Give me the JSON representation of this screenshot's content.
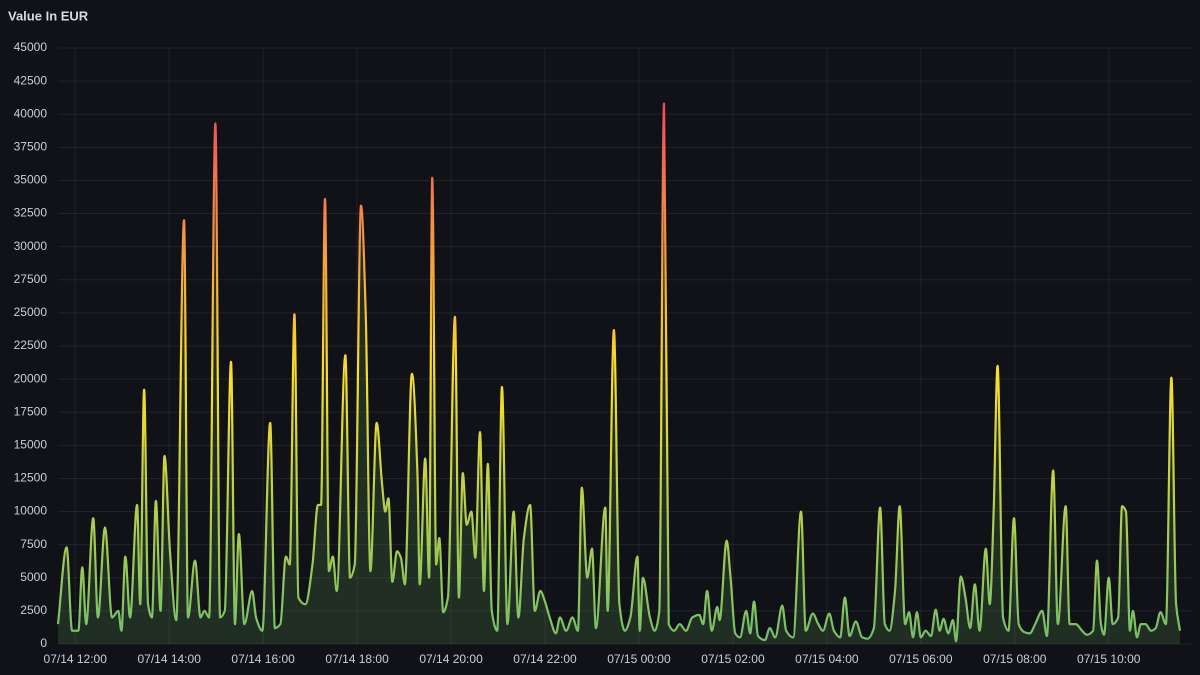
{
  "chart_data": {
    "type": "line",
    "title": "Value In EUR",
    "x": [
      "07/14 11:38",
      "07/14 11:49",
      "07/14 11:56",
      "07/14 12:04",
      "07/14 12:09",
      "07/14 12:14",
      "07/14 12:23",
      "07/14 12:29",
      "07/14 12:38",
      "07/14 12:47",
      "07/14 12:55",
      "07/14 12:59",
      "07/14 13:04",
      "07/14 13:10",
      "07/14 13:19",
      "07/14 13:23",
      "07/14 13:28",
      "07/14 13:33",
      "07/14 13:38",
      "07/14 13:43",
      "07/14 13:49",
      "07/14 13:54",
      "07/14 14:01",
      "07/14 14:09",
      "07/14 14:19",
      "07/14 14:24",
      "07/14 14:33",
      "07/14 14:40",
      "07/14 14:45",
      "07/14 14:51",
      "07/14 14:59",
      "07/14 15:05",
      "07/14 15:11",
      "07/14 15:19",
      "07/14 15:24",
      "07/14 15:29",
      "07/14 15:36",
      "07/14 15:46",
      "07/14 15:51",
      "07/14 15:59",
      "07/14 16:09",
      "07/14 16:15",
      "07/14 16:22",
      "07/14 16:29",
      "07/14 16:34",
      "07/14 16:40",
      "07/14 16:45",
      "07/14 16:54",
      "07/14 17:03",
      "07/14 17:10",
      "07/14 17:14",
      "07/14 17:19",
      "07/14 17:24",
      "07/14 17:29",
      "07/14 17:34",
      "07/14 17:45",
      "07/14 17:51",
      "07/14 17:57",
      "07/14 18:05",
      "07/14 18:11",
      "07/14 18:17",
      "07/14 18:25",
      "07/14 18:32",
      "07/14 18:36",
      "07/14 18:40",
      "07/14 18:45",
      "07/14 18:51",
      "07/14 18:56",
      "07/14 19:01",
      "07/14 19:10",
      "07/14 19:17",
      "07/14 19:20",
      "07/14 19:27",
      "07/14 19:32",
      "07/14 19:36",
      "07/14 19:41",
      "07/14 19:45",
      "07/14 19:50",
      "07/14 19:56",
      "07/14 20:05",
      "07/14 20:10",
      "07/14 20:15",
      "07/14 20:20",
      "07/14 20:26",
      "07/14 20:31",
      "07/14 20:37",
      "07/14 20:42",
      "07/14 20:47",
      "07/14 20:52",
      "07/14 20:59",
      "07/14 21:05",
      "07/14 21:12",
      "07/14 21:20",
      "07/14 21:26",
      "07/14 21:33",
      "07/14 21:41",
      "07/14 21:47",
      "07/14 21:54",
      "07/14 22:00",
      "07/14 22:06",
      "07/14 22:14",
      "07/14 22:19",
      "07/14 22:27",
      "07/14 22:35",
      "07/14 22:42",
      "07/14 22:47",
      "07/14 22:54",
      "07/14 23:00",
      "07/14 23:05",
      "07/14 23:17",
      "07/14 23:20",
      "07/14 23:28",
      "07/14 23:35",
      "07/14 23:42",
      "07/14 23:49",
      "07/14 23:58",
      "07/15 00:01",
      "07/15 00:05",
      "07/15 00:14",
      "07/15 00:20",
      "07/15 00:26",
      "07/15 00:32",
      "07/15 00:38",
      "07/15 00:45",
      "07/15 00:52",
      "07/15 01:00",
      "07/15 01:08",
      "07/15 01:17",
      "07/15 01:22",
      "07/15 01:27",
      "07/15 01:33",
      "07/15 01:40",
      "07/15 01:43",
      "07/15 01:52",
      "07/15 01:57",
      "07/15 02:03",
      "07/15 02:09",
      "07/15 02:17",
      "07/15 02:22",
      "07/15 02:27",
      "07/15 02:32",
      "07/15 02:41",
      "07/15 02:47",
      "07/15 02:54",
      "07/15 03:03",
      "07/15 03:08",
      "07/15 03:17",
      "07/15 03:27",
      "07/15 03:33",
      "07/15 03:42",
      "07/15 03:49",
      "07/15 03:55",
      "07/15 04:03",
      "07/15 04:09",
      "07/15 04:17",
      "07/15 04:23",
      "07/15 04:29",
      "07/15 04:37",
      "07/15 04:45",
      "07/15 04:52",
      "07/15 05:00",
      "07/15 05:08",
      "07/15 05:14",
      "07/15 05:20",
      "07/15 05:27",
      "07/15 05:33",
      "07/15 05:40",
      "07/15 05:45",
      "07/15 05:50",
      "07/15 05:55",
      "07/15 06:00",
      "07/15 06:06",
      "07/15 06:13",
      "07/15 06:19",
      "07/15 06:24",
      "07/15 06:29",
      "07/15 06:35",
      "07/15 06:41",
      "07/15 06:45",
      "07/15 06:51",
      "07/15 06:57",
      "07/15 07:03",
      "07/15 07:09",
      "07/15 07:15",
      "07/15 07:23",
      "07/15 07:28",
      "07/15 07:33",
      "07/15 07:38",
      "07/15 07:45",
      "07/15 07:52",
      "07/15 07:59",
      "07/15 08:05",
      "07/15 08:12",
      "07/15 08:19",
      "07/15 08:26",
      "07/15 08:35",
      "07/15 08:41",
      "07/15 08:49",
      "07/15 08:55",
      "07/15 09:05",
      "07/15 09:10",
      "07/15 09:18",
      "07/15 09:26",
      "07/15 09:32",
      "07/15 09:40",
      "07/15 09:45",
      "07/15 09:50",
      "07/15 09:54",
      "07/15 10:00",
      "07/15 10:05",
      "07/15 10:12",
      "07/15 10:17",
      "07/15 10:22",
      "07/15 10:27",
      "07/15 10:31",
      "07/15 10:36",
      "07/15 10:41",
      "07/15 10:47",
      "07/15 10:54",
      "07/15 11:00",
      "07/15 11:06",
      "07/15 11:13",
      "07/15 11:20",
      "07/15 11:26",
      "07/15 11:31"
    ],
    "series": [
      {
        "name": "Value",
        "colors": [
          "#73bf69",
          "#fade2a",
          "#f2495c"
        ],
        "values": [
          1500,
          7300,
          1000,
          1000,
          5800,
          1500,
          9500,
          2000,
          8800,
          2000,
          2500,
          1000,
          6600,
          2000,
          10500,
          3000,
          19200,
          3000,
          2000,
          10800,
          2500,
          14200,
          7000,
          1800,
          32000,
          2000,
          6300,
          2000,
          2500,
          2000,
          39300,
          2000,
          2500,
          21300,
          1500,
          8300,
          1500,
          4000,
          2000,
          1000,
          16700,
          1200,
          1500,
          6600,
          6000,
          24900,
          3500,
          3000,
          6000,
          10500,
          10500,
          33600,
          5500,
          6600,
          4000,
          21800,
          5000,
          6000,
          33100,
          25000,
          5500,
          16700,
          12000,
          10000,
          11000,
          4700,
          7000,
          6500,
          4500,
          20400,
          13000,
          4500,
          14000,
          5000,
          35200,
          6000,
          8000,
          2400,
          3500,
          24700,
          3500,
          12900,
          9000,
          10000,
          6500,
          16000,
          4000,
          13600,
          2500,
          1000,
          19400,
          1500,
          10000,
          2000,
          8000,
          10500,
          2500,
          4000,
          3200,
          2000,
          800,
          2000,
          1000,
          2000,
          1000,
          11800,
          5000,
          7200,
          1200,
          10300,
          2500,
          23700,
          3000,
          1000,
          2000,
          6600,
          1000,
          5000,
          2000,
          1000,
          2500,
          40800,
          1500,
          1000,
          1500,
          1000,
          2000,
          2200,
          1500,
          4000,
          1000,
          2800,
          1800,
          7800,
          5000,
          800,
          500,
          2500,
          800,
          3200,
          600,
          300,
          1200,
          500,
          2900,
          1000,
          500,
          10000,
          1000,
          2300,
          1500,
          1000,
          2300,
          1000,
          500,
          3500,
          600,
          1700,
          500,
          400,
          1200,
          10300,
          1500,
          1000,
          4000,
          10400,
          1500,
          2400,
          500,
          2400,
          500,
          1000,
          600,
          2600,
          1000,
          1900,
          800,
          1800,
          200,
          5100,
          3500,
          1200,
          4500,
          1000,
          7200,
          3000,
          10000,
          21000,
          2000,
          1000,
          9500,
          1500,
          900,
          800,
          1500,
          2500,
          600,
          13100,
          1500,
          10400,
          1500,
          1500,
          1000,
          700,
          1000,
          6300,
          1500,
          700,
          5000,
          1500,
          2000,
          10400,
          10000,
          1000,
          2500,
          500,
          1500,
          1500,
          1000,
          1200,
          2400,
          1500,
          20100,
          3000,
          1000
        ]
      }
    ],
    "xlim": [
      "07/14 11:38",
      "07/15 11:31"
    ],
    "xticks": [
      "07/14 12:00",
      "07/14 14:00",
      "07/14 16:00",
      "07/14 18:00",
      "07/14 20:00",
      "07/14 22:00",
      "07/15 00:00",
      "07/15 02:00",
      "07/15 04:00",
      "07/15 06:00",
      "07/15 08:00",
      "07/15 10:00"
    ],
    "ylim": [
      0,
      45000
    ],
    "yticks": [
      0,
      2500,
      5000,
      7500,
      10000,
      12500,
      15000,
      17500,
      20000,
      22500,
      25000,
      27500,
      30000,
      32500,
      35000,
      37500,
      40000,
      42500,
      45000
    ],
    "grid": true
  }
}
